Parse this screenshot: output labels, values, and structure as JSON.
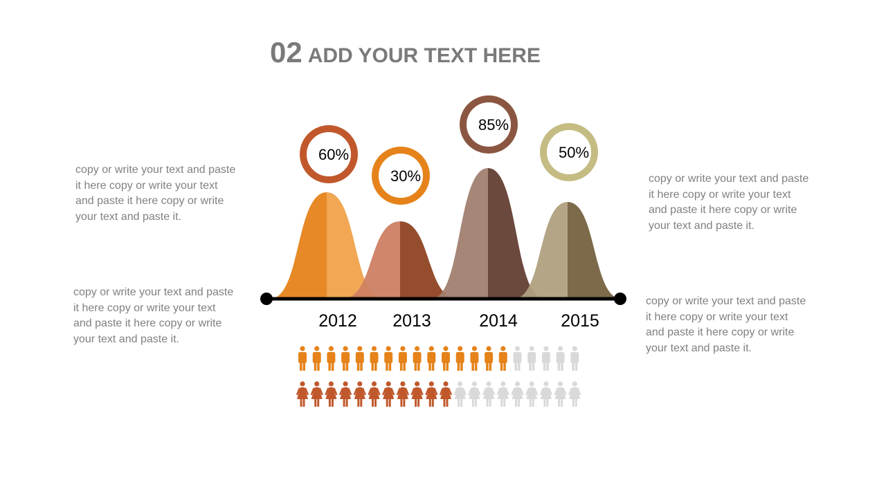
{
  "title": {
    "number": "02",
    "text": "ADD YOUR TEXT HERE"
  },
  "paragraphs": {
    "left_top": [
      "copy or write your text and paste",
      "it here copy or write your text",
      "and paste it here copy or write",
      "your text and paste it."
    ],
    "left_bottom": [
      "copy or write your text and paste",
      "it here copy or write your text",
      "and paste it here copy or write",
      "your text and paste it."
    ],
    "right_top": [
      "copy or write your text and paste",
      "it here copy or write your text",
      "and paste it here copy or write",
      "your text and paste it."
    ],
    "right_bottom": [
      "copy or write your text and paste",
      "it here copy or write your text",
      "and paste it here copy or write",
      "your text and paste it."
    ]
  },
  "chart_data": {
    "type": "area",
    "categories": [
      "2012",
      "2013",
      "2014",
      "2015"
    ],
    "values": [
      60,
      30,
      85,
      50
    ],
    "labels": [
      "60%",
      "30%",
      "85%",
      "50%"
    ],
    "colors": {
      "2012": {
        "ring": "#C0582C",
        "left": "#E5831A",
        "right": "#F0A24A"
      },
      "2013": {
        "ring": "#E5831A",
        "left": "#CD7F62",
        "right": "#8E4322"
      },
      "2014": {
        "ring": "#8B5641",
        "left": "#A08070",
        "right": "#633F31"
      },
      "2015": {
        "ring": "#C4BC82",
        "left": "#B0A080",
        "right": "#756240"
      }
    }
  },
  "pictograms": {
    "men": {
      "total": 20,
      "highlighted": 15,
      "color": "#E5831A",
      "inactive_color": "#D9D9D9"
    },
    "women": {
      "total": 20,
      "highlighted": 11,
      "color": "#C0582C",
      "inactive_color": "#D9D9D9"
    }
  }
}
